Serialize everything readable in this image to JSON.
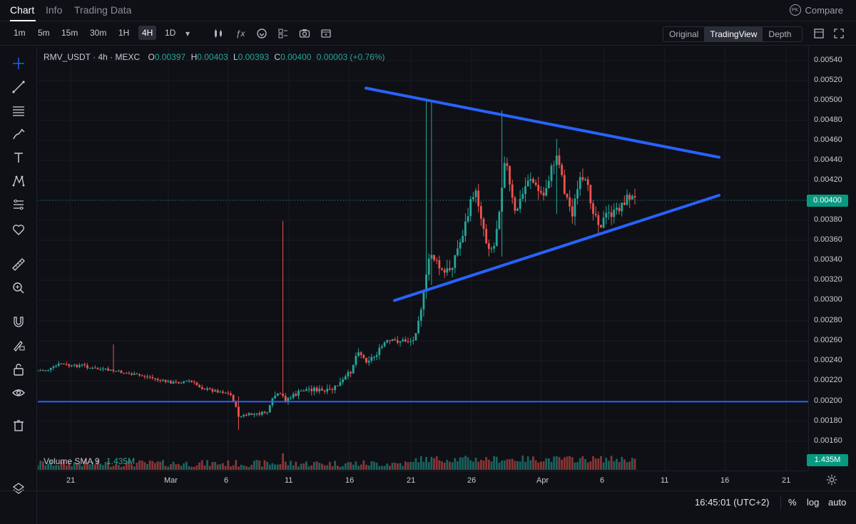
{
  "tabs": [
    {
      "label": "Chart",
      "active": true
    },
    {
      "label": "Info",
      "active": false
    },
    {
      "label": "Trading Data",
      "active": false
    }
  ],
  "compare": {
    "badge": "PK",
    "label": "Compare"
  },
  "timeframes": [
    "1m",
    "5m",
    "15m",
    "30m",
    "1H",
    "4H",
    "1D"
  ],
  "active_timeframe": "4H",
  "toolbar_icons": [
    "candle-type-icon",
    "indicators-icon",
    "alerts-icon",
    "templates-icon",
    "screenshot-icon",
    "fullscreen-icon"
  ],
  "view_modes": [
    {
      "label": "Original",
      "active": false
    },
    {
      "label": "TradingView",
      "active": true
    },
    {
      "label": "Depth",
      "active": false
    }
  ],
  "legend": {
    "symbol": "RMV_USDT · 4h · MEXC",
    "o_key": "O",
    "o": "0.00397",
    "h_key": "H",
    "h": "0.00403",
    "l_key": "L",
    "l": "0.00393",
    "c_key": "C",
    "c": "0.00400",
    "change": "0.00003 (+0.76%)"
  },
  "volume_legend": {
    "label": "Volume SMA 9",
    "value": "1.435M"
  },
  "price_ticks": [
    "0.00540",
    "0.00520",
    "0.00500",
    "0.00480",
    "0.00460",
    "0.00440",
    "0.00420",
    "0.00380",
    "0.00360",
    "0.00340",
    "0.00320",
    "0.00300",
    "0.00280",
    "0.00260",
    "0.00240",
    "0.00220",
    "0.00200",
    "0.00180",
    "0.00160"
  ],
  "current_price": "0.00400",
  "volume_tag": "1.435M",
  "time_ticks": [
    "21",
    "Mar",
    "6",
    "11",
    "16",
    "21",
    "26",
    "Apr",
    "6",
    "11",
    "16",
    "21"
  ],
  "status": {
    "clock": "16:45:01 (UTC+2)",
    "percent": "%",
    "log": "log",
    "auto": "auto"
  },
  "colors": {
    "up": "#26a69a",
    "down": "#ef5350",
    "trendline": "#2962ff",
    "bg": "#0e1015"
  },
  "chart_data": {
    "type": "candlestick",
    "y_axis": {
      "min": 0.0016,
      "max": 0.0054
    },
    "drawn_lines": [
      {
        "name": "upper-trendline",
        "from": {
          "x": "Mar 17",
          "y": 0.00512
        },
        "to": {
          "x": "Apr 15",
          "y": 0.00443
        }
      },
      {
        "name": "lower-trendline",
        "from": {
          "x": "Mar 19",
          "y": 0.003
        },
        "to": {
          "x": "Apr 15",
          "y": 0.00405
        }
      },
      {
        "name": "support-line",
        "y": 0.00199
      }
    ]
  }
}
